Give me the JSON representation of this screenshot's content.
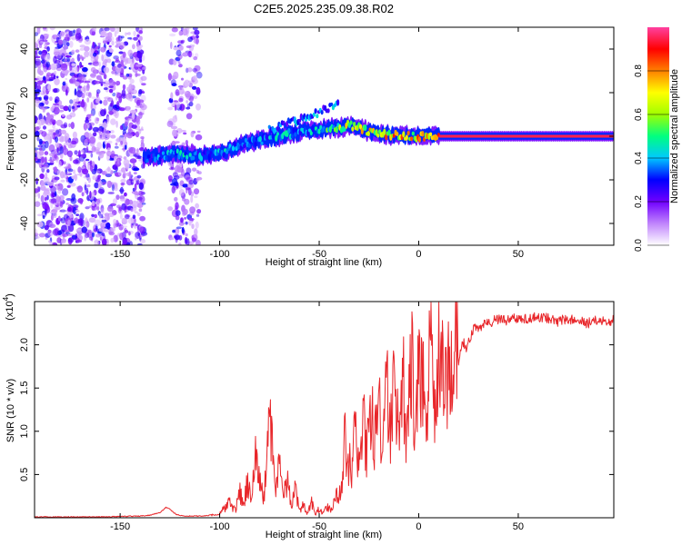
{
  "figure_title": "C2E5.2025.235.09.38.R02",
  "chart_data": [
    {
      "type": "heatmap",
      "title": "C2E5.2025.235.09.38.R02",
      "xlabel": "Height of straight line (km)",
      "ylabel": "Frequency (Hz)",
      "xlim": [
        -193,
        98
      ],
      "ylim": [
        -50,
        50
      ],
      "x_ticks": [
        -150,
        -100,
        -50,
        0,
        50
      ],
      "x_tick_labels": [
        "-150",
        "-100",
        "-50",
        "0",
        "50"
      ],
      "y_ticks": [
        -40,
        -20,
        0,
        20,
        40
      ],
      "y_tick_labels": [
        "-40",
        "-20",
        "0",
        "20",
        "40"
      ],
      "noise_regions": [
        {
          "x_start": -193,
          "x_end": -138,
          "f_min": -50,
          "f_max": 50
        },
        {
          "x_start": -125,
          "x_end": -110,
          "f_min": -50,
          "f_max": 50
        }
      ],
      "ridge": {
        "x": [
          -138,
          -130,
          -120,
          -110,
          -100,
          -90,
          -80,
          -70,
          -60,
          -50,
          -40,
          -35,
          -30,
          -25,
          -20,
          -10,
          0,
          10,
          20,
          30,
          40,
          50,
          60,
          70,
          80,
          90,
          98
        ],
        "frequency": [
          -10,
          -9,
          -8,
          -9,
          -8,
          -4,
          -2,
          0,
          2,
          3,
          4,
          5,
          4,
          2,
          1,
          0.5,
          0,
          0,
          0,
          0,
          0,
          0,
          0,
          0,
          0,
          0,
          0
        ],
        "amplitude": [
          0.35,
          0.45,
          0.5,
          0.45,
          0.5,
          0.4,
          0.45,
          0.5,
          0.45,
          0.5,
          0.7,
          0.85,
          0.8,
          0.85,
          0.85,
          0.9,
          0.9,
          0.95,
          0.95,
          0.95,
          0.95,
          0.95,
          0.95,
          0.95,
          0.95,
          0.95,
          0.95
        ]
      },
      "secondary_branch": {
        "x": [
          -75,
          -65,
          -55,
          -50,
          -45,
          -40
        ],
        "frequency": [
          3,
          6,
          9,
          11,
          13,
          16
        ]
      },
      "colorbar": {
        "label": "Normalized spectral amplitude",
        "range": [
          0,
          1
        ],
        "ticks": [
          0.0,
          0.2,
          0.4,
          0.6,
          0.8
        ],
        "tick_labels": [
          "0.0",
          "0.2",
          "0.4",
          "0.6",
          "0.8"
        ],
        "colors": [
          "#ffffff",
          "#c084fc",
          "#7000ff",
          "#0000ff",
          "#00c8ff",
          "#00ff80",
          "#a0ff00",
          "#ffff00",
          "#ff8000",
          "#ff0000",
          "#ff40a0"
        ]
      }
    },
    {
      "type": "line",
      "xlabel": "Height of straight line (km)",
      "ylabel": "SNR (10 * v/v)",
      "y_multiplier_label": "(x10",
      "y_multiplier_exp": "4",
      "y_multiplier_close": ")",
      "xlim": [
        -193,
        98
      ],
      "ylim": [
        0,
        2.5
      ],
      "x_ticks": [
        -150,
        -100,
        -50,
        0,
        50
      ],
      "x_tick_labels": [
        "-150",
        "-100",
        "-50",
        "0",
        "50"
      ],
      "y_ticks": [
        0.5,
        1.0,
        1.5,
        2.0
      ],
      "y_tick_labels": [
        "0.5",
        "1.0",
        "1.5",
        "2.0"
      ],
      "line_color": "#e8262a",
      "series": [
        {
          "name": "SNR",
          "x": [
            -193,
            -180,
            -160,
            -140,
            -135,
            -130,
            -127,
            -125,
            -122,
            -118,
            -110,
            -104,
            -100,
            -98,
            -95,
            -92,
            -90,
            -88,
            -86,
            -84,
            -82,
            -80,
            -78,
            -76,
            -75,
            -74,
            -72,
            -70,
            -68,
            -66,
            -64,
            -62,
            -60,
            -58,
            -56,
            -54,
            -52,
            -50,
            -48,
            -46,
            -44,
            -42,
            -40,
            -38,
            -37,
            -36,
            -35,
            -34,
            -32,
            -30,
            -28,
            -26,
            -24,
            -22,
            -20,
            -18,
            -16,
            -14,
            -12,
            -10,
            -8,
            -6,
            -4,
            -2,
            0,
            2,
            4,
            6,
            8,
            10,
            12,
            14,
            16,
            18,
            20,
            22,
            24,
            26,
            28,
            30,
            35,
            40,
            45,
            50,
            55,
            60,
            65,
            70,
            75,
            80,
            85,
            90,
            95,
            98
          ],
          "y": [
            0.01,
            0.01,
            0.01,
            0.02,
            0.03,
            0.06,
            0.12,
            0.1,
            0.04,
            0.02,
            0.02,
            0.03,
            0.05,
            0.1,
            0.18,
            0.08,
            0.3,
            0.15,
            0.4,
            0.25,
            0.7,
            0.55,
            0.2,
            0.8,
            1.2,
            0.9,
            0.3,
            0.6,
            0.25,
            0.45,
            0.1,
            0.35,
            0.08,
            0.15,
            0.05,
            0.2,
            0.04,
            0.1,
            0.06,
            0.12,
            0.08,
            0.3,
            0.2,
            0.6,
            0.95,
            0.4,
            0.7,
            0.45,
            1.0,
            0.6,
            1.1,
            0.75,
            1.2,
            0.9,
            1.4,
            0.8,
            1.6,
            1.0,
            1.8,
            1.1,
            1.7,
            0.9,
            2.0,
            1.3,
            1.5,
            1.7,
            1.0,
            2.1,
            1.4,
            2.35,
            1.6,
            1.9,
            1.45,
            2.0,
            1.8,
            2.05,
            1.95,
            2.1,
            2.2,
            2.2,
            2.25,
            2.3,
            2.28,
            2.32,
            2.3,
            2.33,
            2.3,
            2.27,
            2.3,
            2.28,
            2.25,
            2.28,
            2.26,
            2.3
          ]
        }
      ]
    }
  ]
}
